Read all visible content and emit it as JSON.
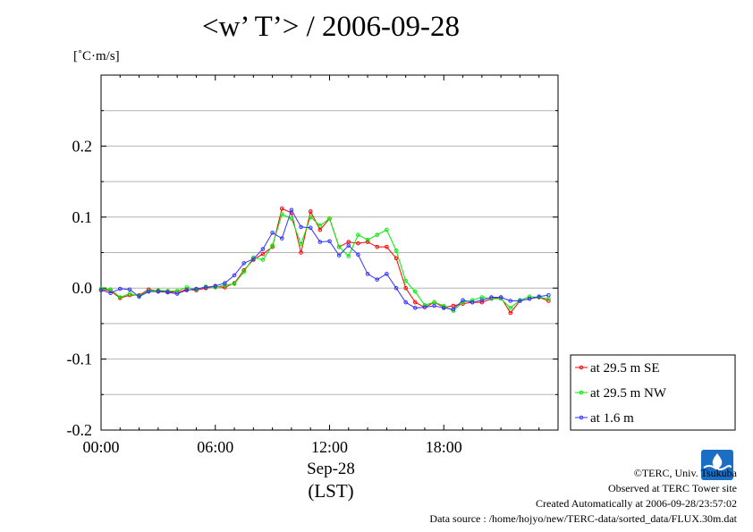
{
  "chart_data": {
    "type": "line",
    "title": "<w’ T’> / 2006-09-28",
    "ylabel": "[˚C·m/s]",
    "xlabel": "Sep-28",
    "xlabel2": "(LST)",
    "ylim": [
      -0.2,
      0.3
    ],
    "yticks": [
      -0.2,
      -0.1,
      0.0,
      0.1,
      0.2
    ],
    "ytick_labels": [
      "-0.2",
      "-0.1",
      "0.0",
      "0.1",
      "0.2"
    ],
    "xlim": [
      0,
      24
    ],
    "xticks": [
      0,
      6,
      12,
      18
    ],
    "xtick_labels": [
      "00:00",
      "06:00",
      "12:00",
      "18:00"
    ],
    "grid": true,
    "legend_position": "right",
    "x": [
      0.0,
      0.5,
      1.0,
      1.5,
      2.0,
      2.5,
      3.0,
      3.5,
      4.0,
      4.5,
      5.0,
      5.5,
      6.0,
      6.5,
      7.0,
      7.5,
      8.0,
      8.5,
      9.0,
      9.5,
      10.0,
      10.5,
      11.0,
      11.5,
      12.0,
      12.5,
      13.0,
      13.5,
      14.0,
      14.5,
      15.0,
      15.5,
      16.0,
      16.5,
      17.0,
      17.5,
      18.0,
      18.5,
      19.0,
      19.5,
      20.0,
      20.5,
      21.0,
      21.5,
      22.0,
      22.5,
      23.0,
      23.5
    ],
    "series": [
      {
        "name": "at 29.5 m SE",
        "color": "#ff0000",
        "values": [
          -0.002,
          -0.004,
          -0.014,
          -0.01,
          -0.01,
          -0.002,
          -0.004,
          -0.005,
          -0.006,
          -0.002,
          -0.003,
          0.0,
          0.002,
          0.001,
          0.007,
          0.025,
          0.04,
          0.048,
          0.058,
          0.112,
          0.106,
          0.05,
          0.108,
          0.082,
          0.098,
          0.058,
          0.065,
          0.063,
          0.065,
          0.058,
          0.058,
          0.042,
          0.0,
          -0.02,
          -0.027,
          -0.02,
          -0.027,
          -0.025,
          -0.022,
          -0.02,
          -0.02,
          -0.015,
          -0.013,
          -0.035,
          -0.018,
          -0.015,
          -0.013,
          -0.018
        ]
      },
      {
        "name": "at 29.5 m NW",
        "color": "#00ee00",
        "values": [
          -0.001,
          -0.002,
          -0.013,
          -0.008,
          -0.011,
          -0.004,
          -0.003,
          -0.004,
          -0.004,
          0.001,
          -0.002,
          0.002,
          0.001,
          0.004,
          0.006,
          0.023,
          0.043,
          0.04,
          0.06,
          0.104,
          0.098,
          0.062,
          0.1,
          0.088,
          0.098,
          0.058,
          0.045,
          0.075,
          0.068,
          0.075,
          0.082,
          0.053,
          0.01,
          -0.005,
          -0.024,
          -0.02,
          -0.025,
          -0.032,
          -0.02,
          -0.017,
          -0.013,
          -0.015,
          -0.015,
          -0.028,
          -0.017,
          -0.012,
          -0.013,
          -0.015
        ]
      },
      {
        "name": "at 1.6 m",
        "color": "#3333ff",
        "values": [
          -0.003,
          -0.007,
          -0.001,
          -0.002,
          -0.012,
          -0.005,
          -0.005,
          -0.006,
          -0.008,
          -0.003,
          -0.001,
          0.001,
          0.003,
          0.007,
          0.018,
          0.035,
          0.041,
          0.055,
          0.078,
          0.07,
          0.11,
          0.086,
          0.085,
          0.065,
          0.066,
          0.046,
          0.06,
          0.047,
          0.02,
          0.012,
          0.02,
          0.0,
          -0.02,
          -0.028,
          -0.027,
          -0.025,
          -0.028,
          -0.03,
          -0.017,
          -0.02,
          -0.017,
          -0.013,
          -0.013,
          -0.018,
          -0.018,
          -0.015,
          -0.012,
          -0.01
        ]
      }
    ]
  },
  "footer": {
    "copyright": "©TERC, Univ. Tsukuba",
    "site": "Observed at TERC Tower site",
    "created": "Created Automatically at 2006-09-28/23:57:02",
    "source": "Data source : /home/hojyo/new/TERC-data/sorted_data/FLUX.30m.dat",
    "logo_text": "TERC"
  }
}
